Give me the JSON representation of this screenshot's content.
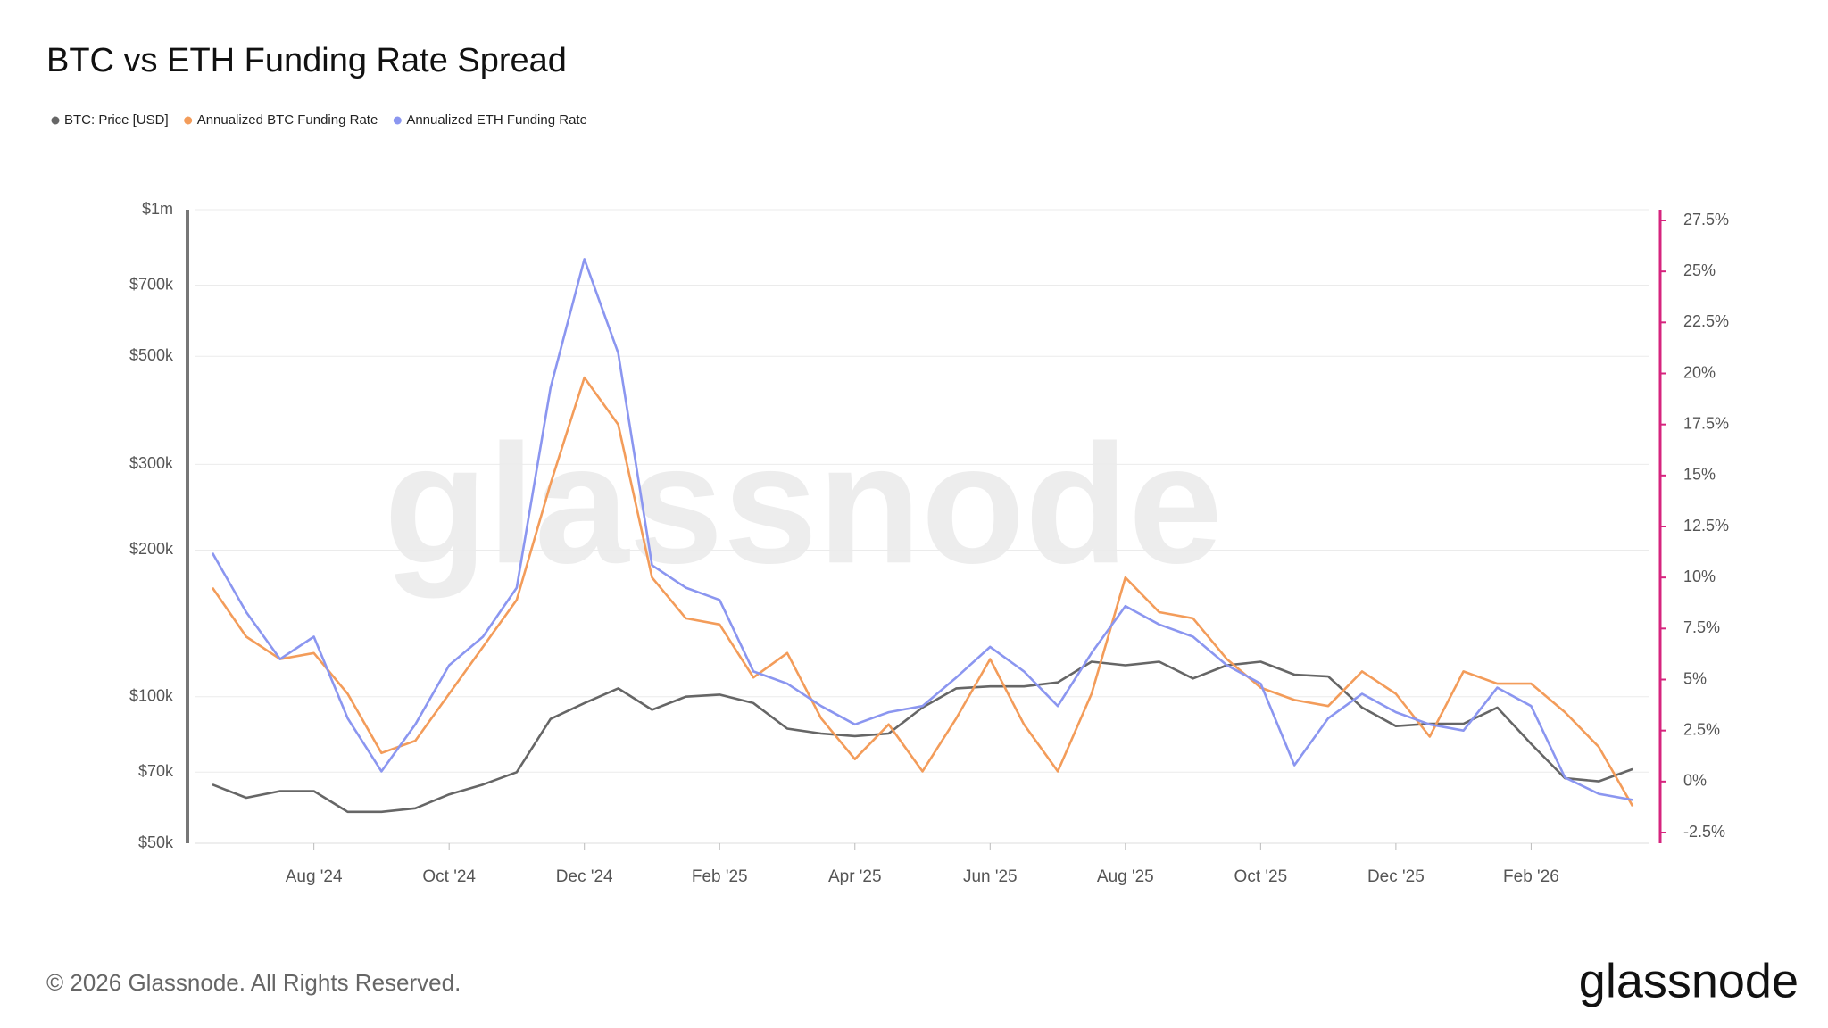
{
  "chart_data": {
    "type": "line",
    "title": "BTC vs ETH Funding Rate Spread",
    "watermark": "glassnode",
    "categories": [
      null,
      null,
      null,
      "Aug '24",
      null,
      null,
      null,
      "Oct '24",
      null,
      null,
      null,
      "Dec '24",
      null,
      null,
      null,
      "Feb '25",
      null,
      null,
      null,
      "Apr '25",
      null,
      null,
      null,
      "Jun '25",
      null,
      null,
      null,
      "Aug '25",
      null,
      null,
      null,
      "Oct '25",
      null,
      null,
      null,
      "Dec '25",
      null,
      null,
      null,
      "Feb '26",
      null,
      null,
      null
    ],
    "y_scale": "log",
    "ylim": [
      50000,
      1000000
    ],
    "yticks": [
      {
        "value": 50000,
        "label": "$50k"
      },
      {
        "value": 70000,
        "label": "$70k"
      },
      {
        "value": 100000,
        "label": "$100k"
      },
      {
        "value": 200000,
        "label": "$200k"
      },
      {
        "value": 300000,
        "label": "$300k"
      },
      {
        "value": 500000,
        "label": "$500k"
      },
      {
        "value": 700000,
        "label": "$700k"
      },
      {
        "value": 1000000,
        "label": "$1m"
      }
    ],
    "y2lim": [
      -2.5,
      27.5
    ],
    "y2ticks": [
      {
        "value": -2.5,
        "label": "-2.5%"
      },
      {
        "value": 0,
        "label": "0%"
      },
      {
        "value": 2.5,
        "label": "2.5%"
      },
      {
        "value": 5,
        "label": "5%"
      },
      {
        "value": 7.5,
        "label": "7.5%"
      },
      {
        "value": 10,
        "label": "10%"
      },
      {
        "value": 12.5,
        "label": "12.5%"
      },
      {
        "value": 15,
        "label": "15%"
      },
      {
        "value": 17.5,
        "label": "17.5%"
      },
      {
        "value": 20,
        "label": "20%"
      },
      {
        "value": 22.5,
        "label": "22.5%"
      },
      {
        "value": 25,
        "label": "25%"
      },
      {
        "value": 27.5,
        "label": "27.5%"
      }
    ],
    "y2_axis_color": "#d6247e",
    "grid": true,
    "legend": "top-left",
    "series": [
      {
        "name": "BTC: Price [USD]",
        "color": "#666666",
        "values": [
          66000,
          62000,
          64000,
          64000,
          58000,
          58000,
          59000,
          63000,
          66000,
          70000,
          90000,
          97000,
          104000,
          94000,
          100000,
          101000,
          97000,
          86000,
          84000,
          83000,
          84000,
          95000,
          104000,
          105000,
          105000,
          107000,
          118000,
          116000,
          118000,
          109000,
          116000,
          118000,
          111000,
          110000,
          95000,
          87000,
          88000,
          88000,
          95000,
          80000,
          68000,
          67000,
          71000
        ]
      },
      {
        "name": "Annualized BTC Funding Rate",
        "color": "#f39c5a",
        "axis": "y2",
        "values": [
          9.5,
          7.1,
          6.0,
          6.3,
          4.3,
          1.4,
          2.0,
          4.3,
          6.6,
          8.9,
          14.6,
          19.8,
          17.5,
          10.0,
          8.0,
          7.7,
          5.1,
          6.3,
          3.1,
          1.1,
          2.8,
          0.5,
          3.1,
          6.0,
          2.8,
          0.5,
          4.3,
          10.0,
          8.3,
          8.0,
          6.0,
          4.6,
          4.0,
          3.7,
          5.4,
          4.3,
          2.2,
          5.4,
          4.8,
          4.8,
          3.4,
          1.7,
          -1.2
        ]
      },
      {
        "name": "Annualized ETH Funding Rate",
        "color": "#8b96f0",
        "axis": "y2",
        "values": [
          11.2,
          8.3,
          6.0,
          7.1,
          3.1,
          0.5,
          2.8,
          5.7,
          7.1,
          9.5,
          19.3,
          25.6,
          21.0,
          10.6,
          9.5,
          8.9,
          5.4,
          4.8,
          3.7,
          2.8,
          3.4,
          3.7,
          5.1,
          6.6,
          5.4,
          3.7,
          6.3,
          8.6,
          7.7,
          7.1,
          5.7,
          4.8,
          0.8,
          3.1,
          4.3,
          3.4,
          2.8,
          2.5,
          4.6,
          3.7,
          0.2,
          -0.6,
          -0.9
        ]
      }
    ]
  },
  "footer": {
    "copyright": "© 2026 Glassnode. All Rights Reserved.",
    "logo": "glassnode"
  }
}
